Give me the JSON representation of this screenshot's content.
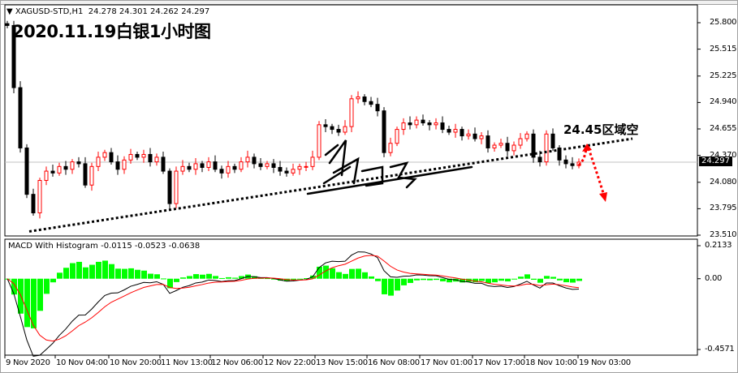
{
  "header": {
    "symbol": "XAGUSD-STD,H1",
    "ohlc": "24.278 24.301 24.262 24.297",
    "menu_icon": "triangle-down-icon"
  },
  "title": "2020.11.19白银1小时图",
  "annotation": "24.45区域空",
  "macd": {
    "label": "MACD With Histogram -0.0115 -0.0523 -0.0638",
    "ticks": [
      "0.2133",
      "0.00",
      "-0.4571"
    ]
  },
  "current_price": "24.297",
  "colors": {
    "bull": "#ff0000",
    "bear": "#000000",
    "histogram": "#00ff00",
    "macd_line": "#000000",
    "signal_line": "#ff0000",
    "trendline": "#000000",
    "arrow": "#ff0000"
  },
  "chart_data": {
    "type": "candlestick",
    "price_ticks": [
      "25.800",
      "25.515",
      "25.225",
      "24.940",
      "24.655",
      "24.370",
      "24.080",
      "23.795",
      "23.510"
    ],
    "ylim": [
      23.51,
      25.8
    ],
    "macd_ylim": [
      -0.4571,
      0.2133
    ],
    "time_ticks": [
      "9 Nov 2020",
      "10 Nov 04:00",
      "10 Nov 20:00",
      "11 Nov 13:00",
      "12 Nov 06:00",
      "12 Nov 22:00",
      "13 Nov 15:00",
      "16 Nov 08:00",
      "17 Nov 01:00",
      "17 Nov 17:00",
      "18 Nov 10:00",
      "19 Nov 03:00"
    ],
    "closes": [
      25.77,
      25.1,
      24.45,
      23.95,
      23.75,
      24.1,
      24.2,
      24.18,
      24.25,
      24.22,
      24.3,
      24.28,
      24.05,
      24.25,
      24.35,
      24.4,
      24.3,
      24.22,
      24.32,
      24.38,
      24.35,
      24.38,
      24.3,
      24.35,
      24.2,
      23.85,
      24.2,
      24.25,
      24.22,
      24.28,
      24.24,
      24.3,
      24.22,
      24.18,
      24.25,
      24.22,
      24.3,
      24.35,
      24.28,
      24.25,
      24.28,
      24.24,
      24.2,
      24.18,
      24.22,
      24.25,
      24.25,
      24.35,
      24.7,
      24.68,
      24.65,
      24.62,
      24.68,
      24.98,
      25.0,
      24.95,
      24.92,
      24.85,
      24.4,
      24.5,
      24.65,
      24.72,
      24.7,
      24.75,
      24.72,
      24.7,
      24.72,
      24.65,
      24.62,
      24.65,
      24.58,
      24.6,
      24.55,
      24.58,
      24.45,
      24.48,
      24.5,
      24.42,
      24.48,
      24.55,
      24.6,
      24.35,
      24.3,
      24.6,
      24.45,
      24.32,
      24.28,
      24.26,
      24.297
    ],
    "trendline": [
      23.55,
      24.55
    ]
  }
}
